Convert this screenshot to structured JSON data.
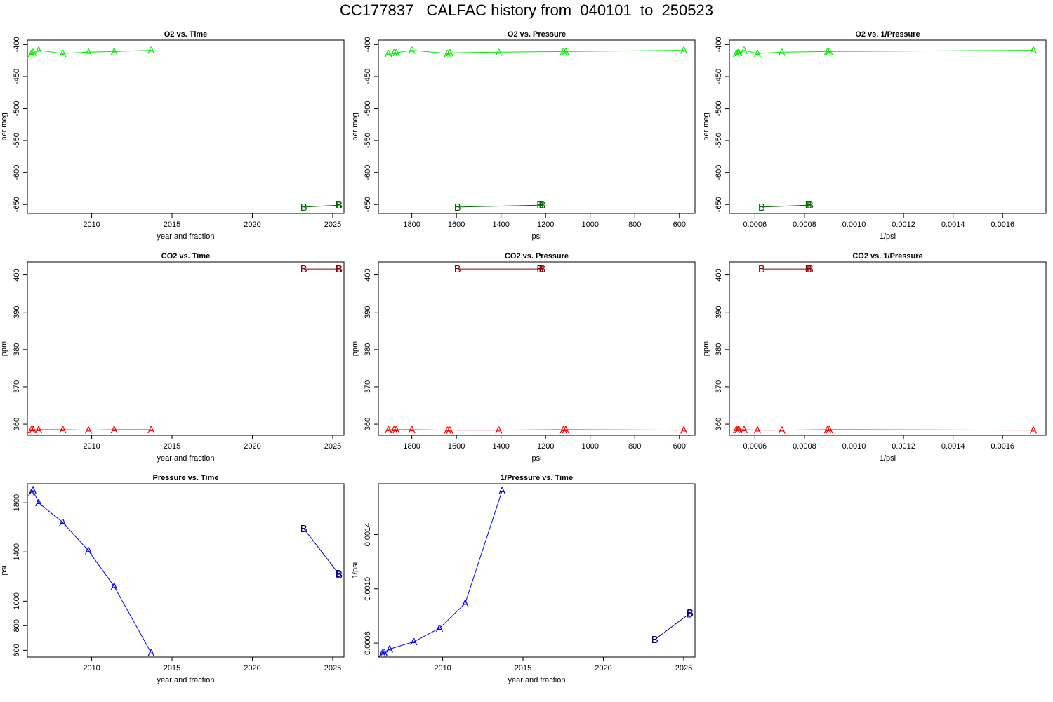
{
  "page_title": "CC177837   CALFAC history from  040101  to  250523",
  "colors": {
    "o2_A": "#00ee00",
    "o2_B": "#006400",
    "co2_A": "#ff0000",
    "co2_B": "#8b0000",
    "p_A": "#0000ff",
    "p_B": "#00008b"
  },
  "chart_data": [
    {
      "type": "line",
      "title": "O2 vs. Time",
      "xlabel": "year and fraction",
      "ylabel": "per meg",
      "xlim": [
        2006.0,
        2025.7
      ],
      "ylim": [
        -664,
        -393
      ],
      "x_reversed": false,
      "xticks": [
        "2010",
        "2015",
        "2020",
        "2025"
      ],
      "xtick_values": [
        2010,
        2015,
        2020,
        2025
      ],
      "yticks": [
        "-400",
        "-450",
        "-500",
        "-550",
        "-600",
        "-650"
      ],
      "ytick_values": [
        -400,
        -450,
        -500,
        -550,
        -600,
        -650
      ],
      "series": [
        {
          "name": "A",
          "color": "#00ee00",
          "x": [
            2006.25,
            2006.35,
            2006.7,
            2008.2,
            2009.8,
            2011.4,
            2013.7
          ],
          "y": [
            -414,
            -412,
            -409,
            -414,
            -412,
            -411,
            -409
          ]
        },
        {
          "name": "B",
          "color": "#006400",
          "x": [
            2023.2,
            2025.35,
            2025.4
          ],
          "y": [
            -654,
            -651,
            -651
          ]
        }
      ]
    },
    {
      "type": "line",
      "title": "O2 vs. Pressure",
      "xlabel": "psi",
      "ylabel": "per meg",
      "xlim": [
        1950,
        530
      ],
      "ylim": [
        -664,
        -393
      ],
      "x_reversed": true,
      "xticks": [
        "1800",
        "1600",
        "1400",
        "1200",
        "1000",
        "800",
        "600"
      ],
      "xtick_values": [
        1800,
        1600,
        1400,
        1200,
        1000,
        800,
        600
      ],
      "yticks": [
        "-400",
        "-450",
        "-500",
        "-550",
        "-600",
        "-650"
      ],
      "ytick_values": [
        -400,
        -450,
        -500,
        -550,
        -600,
        -650
      ],
      "series": [
        {
          "name": "A",
          "color": "#00ee00",
          "x": [
            1905,
            1880,
            1870,
            1800,
            1640,
            1630,
            1410,
            1120,
            1110,
            580
          ],
          "y": [
            -414,
            -413,
            -413,
            -409,
            -414,
            -413,
            -412,
            -411,
            -411,
            -409
          ]
        },
        {
          "name": "B",
          "color": "#006400",
          "x": [
            1595,
            1225,
            1215
          ],
          "y": [
            -654,
            -651,
            -651
          ]
        }
      ]
    },
    {
      "type": "line",
      "title": "O2 vs. 1/Pressure",
      "xlabel": "1/psi",
      "ylabel": "per meg",
      "xlim": [
        0.000497,
        0.001775
      ],
      "ylim": [
        -664,
        -393
      ],
      "x_reversed": false,
      "xticks": [
        "0.0006",
        "0.0008",
        "0.0010",
        "0.0012",
        "0.0014",
        "0.0016"
      ],
      "xtick_values": [
        0.0006,
        0.0008,
        0.001,
        0.0012,
        0.0014,
        0.0016
      ],
      "yticks": [
        "-400",
        "-450",
        "-500",
        "-550",
        "-600",
        "-650"
      ],
      "ytick_values": [
        -400,
        -450,
        -500,
        -550,
        -600,
        -650
      ],
      "series": [
        {
          "name": "A",
          "color": "#00ee00",
          "x": [
            0.000525,
            0.000532,
            0.000535,
            0.000556,
            0.00061,
            0.000709,
            0.000893,
            0.000901,
            0.001724
          ],
          "y": [
            -414,
            -413,
            -413,
            -409,
            -414,
            -412,
            -411,
            -411,
            -409
          ]
        },
        {
          "name": "B",
          "color": "#006400",
          "x": [
            0.000627,
            0.000816,
            0.000823
          ],
          "y": [
            -654,
            -651,
            -651
          ]
        }
      ]
    },
    {
      "type": "line",
      "title": "CO2 vs. Time",
      "xlabel": "year and fraction",
      "ylabel": "ppm",
      "xlim": [
        2006.0,
        2025.7
      ],
      "ylim": [
        357,
        403.5
      ],
      "x_reversed": false,
      "xticks": [
        "2010",
        "2015",
        "2020",
        "2025"
      ],
      "xtick_values": [
        2010,
        2015,
        2020,
        2025
      ],
      "yticks": [
        "360",
        "370",
        "380",
        "390",
        "400"
      ],
      "ytick_values": [
        360,
        370,
        380,
        390,
        400
      ],
      "series": [
        {
          "name": "A",
          "color": "#ff0000",
          "x": [
            2006.25,
            2006.35,
            2006.7,
            2008.2,
            2009.8,
            2011.4,
            2013.7
          ],
          "y": [
            358.5,
            358.5,
            358.5,
            358.5,
            358.4,
            358.5,
            358.5
          ]
        },
        {
          "name": "B",
          "color": "#8b0000",
          "x": [
            2023.2,
            2025.35,
            2025.4
          ],
          "y": [
            401.6,
            401.6,
            401.6
          ]
        }
      ]
    },
    {
      "type": "line",
      "title": "CO2 vs. Pressure",
      "xlabel": "psi",
      "ylabel": "ppm",
      "xlim": [
        1950,
        530
      ],
      "ylim": [
        357,
        403.5
      ],
      "x_reversed": true,
      "xticks": [
        "1800",
        "1600",
        "1400",
        "1200",
        "1000",
        "800",
        "600"
      ],
      "xtick_values": [
        1800,
        1600,
        1400,
        1200,
        1000,
        800,
        600
      ],
      "yticks": [
        "360",
        "370",
        "380",
        "390",
        "400"
      ],
      "ytick_values": [
        360,
        370,
        380,
        390,
        400
      ],
      "series": [
        {
          "name": "A",
          "color": "#ff0000",
          "x": [
            1905,
            1880,
            1870,
            1800,
            1640,
            1630,
            1410,
            1120,
            1110,
            580
          ],
          "y": [
            358.5,
            358.5,
            358.5,
            358.5,
            358.4,
            358.4,
            358.4,
            358.5,
            358.5,
            358.4
          ]
        },
        {
          "name": "B",
          "color": "#8b0000",
          "x": [
            1595,
            1225,
            1215
          ],
          "y": [
            401.6,
            401.6,
            401.6
          ]
        }
      ]
    },
    {
      "type": "line",
      "title": "CO2 vs. 1/Pressure",
      "xlabel": "1/psi",
      "ylabel": "ppm",
      "xlim": [
        0.000497,
        0.001775
      ],
      "ylim": [
        357,
        403.5
      ],
      "x_reversed": false,
      "xticks": [
        "0.0006",
        "0.0008",
        "0.0010",
        "0.0012",
        "0.0014",
        "0.0016"
      ],
      "xtick_values": [
        0.0006,
        0.0008,
        0.001,
        0.0012,
        0.0014,
        0.0016
      ],
      "yticks": [
        "360",
        "370",
        "380",
        "390",
        "400"
      ],
      "ytick_values": [
        360,
        370,
        380,
        390,
        400
      ],
      "series": [
        {
          "name": "A",
          "color": "#ff0000",
          "x": [
            0.000525,
            0.000532,
            0.000535,
            0.000556,
            0.00061,
            0.000709,
            0.000893,
            0.000901,
            0.001724
          ],
          "y": [
            358.5,
            358.5,
            358.5,
            358.5,
            358.4,
            358.4,
            358.5,
            358.5,
            358.4
          ]
        },
        {
          "name": "B",
          "color": "#8b0000",
          "x": [
            0.000627,
            0.000816,
            0.000823
          ],
          "y": [
            401.6,
            401.6,
            401.6
          ]
        }
      ]
    },
    {
      "type": "line",
      "title": "Pressure vs. Time",
      "xlabel": "year and fraction",
      "ylabel": "psi",
      "xlim": [
        2006.0,
        2025.7
      ],
      "ylim": [
        545,
        1955
      ],
      "x_reversed": false,
      "xticks": [
        "2010",
        "2015",
        "2020",
        "2025"
      ],
      "xtick_values": [
        2010,
        2015,
        2020,
        2025
      ],
      "yticks": [
        "600",
        "800",
        "1000",
        "1400",
        "1800"
      ],
      "ytick_values": [
        600,
        800,
        1000,
        1400,
        1800
      ],
      "series": [
        {
          "name": "A",
          "color": "#0000ff",
          "x": [
            2006.25,
            2006.35,
            2006.7,
            2008.2,
            2009.8,
            2011.4,
            2013.7
          ],
          "y": [
            1880,
            1900,
            1800,
            1640,
            1410,
            1120,
            580
          ]
        },
        {
          "name": "B",
          "color": "#00008b",
          "x": [
            2023.2,
            2025.35,
            2025.4
          ],
          "y": [
            1590,
            1225,
            1215
          ]
        }
      ]
    },
    {
      "type": "line",
      "title": "1/Pressure vs. Time",
      "xlabel": "year and fraction",
      "ylabel": "1/psi",
      "xlim": [
        2006.0,
        2025.7
      ],
      "ylim": [
        0.000497,
        0.001775
      ],
      "x_reversed": false,
      "xticks": [
        "2010",
        "2015",
        "2020",
        "2025"
      ],
      "xtick_values": [
        2010,
        2015,
        2020,
        2025
      ],
      "yticks": [
        "0.0006",
        "0.0010",
        "0.0014"
      ],
      "ytick_values": [
        0.0006,
        0.001,
        0.0014
      ],
      "series": [
        {
          "name": "A",
          "color": "#0000ff",
          "x": [
            2006.25,
            2006.35,
            2006.7,
            2008.2,
            2009.8,
            2011.4,
            2013.7
          ],
          "y": [
            0.000525,
            0.000532,
            0.000556,
            0.00061,
            0.000709,
            0.000893,
            0.001724
          ]
        },
        {
          "name": "B",
          "color": "#00008b",
          "x": [
            2023.2,
            2025.35,
            2025.4
          ],
          "y": [
            0.000627,
            0.000816,
            0.000823
          ]
        }
      ]
    }
  ]
}
